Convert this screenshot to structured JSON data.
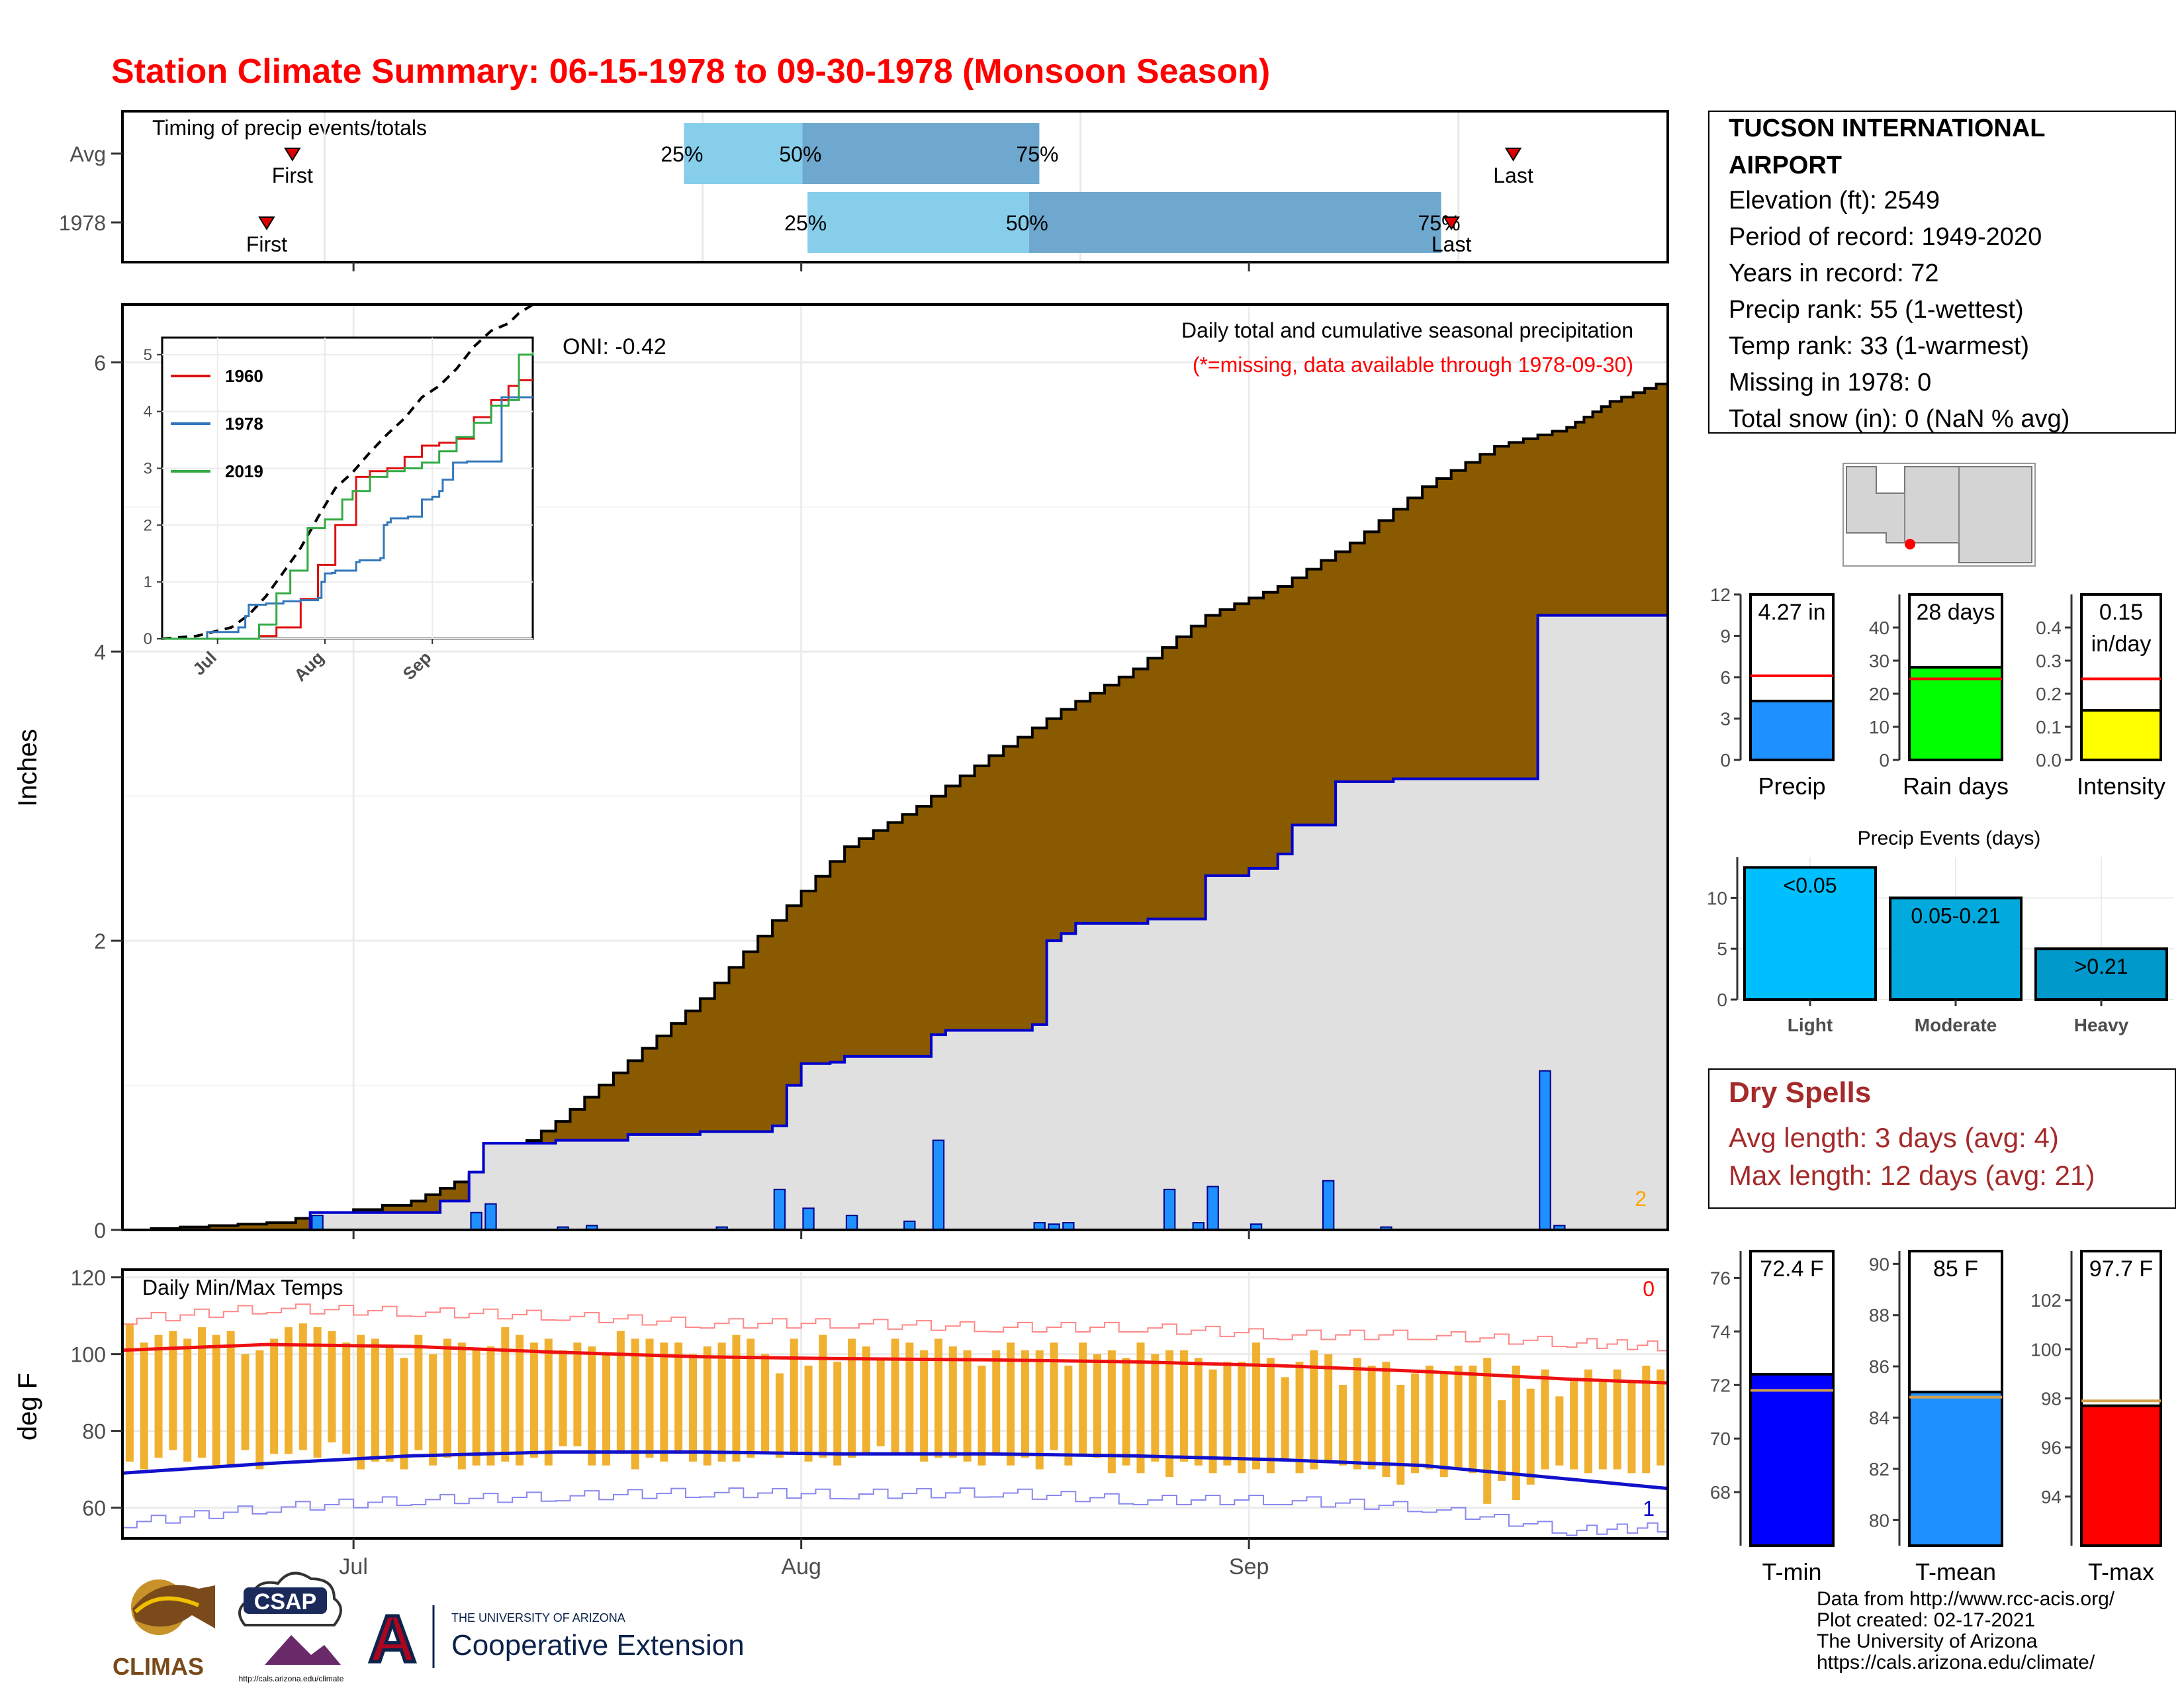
{
  "title": "Station Climate Summary: 06-15-1978 to 09-30-1978 (Monsoon Season)",
  "station": {
    "name_line1": "TUCSON INTERNATIONAL",
    "name_line2": "AIRPORT",
    "elevation": "Elevation (ft): 2549",
    "period": "Period of record: 1949-2020",
    "years": "Years in record: 72",
    "precip_rank": "Precip rank: 55 (1-wettest)",
    "temp_rank": "Temp rank: 33 (1-warmest)",
    "missing": "Missing in 1978: 0",
    "snow": "Total snow (in): 0 (NaN % avg)"
  },
  "colors": {
    "title": "#ff0000",
    "cumulative_avg_fill": "#8a5a00",
    "cumulative_1978_fill": "#e0e0e0",
    "line_1978": "#0000cc",
    "daily_bar": "#1e90ff",
    "temp_bar": "#f0b030",
    "max_line": "#ee1111",
    "min_line": "#1111cc",
    "dry_spells_text": "#a52a2a",
    "timing_light": "#87ceeb",
    "timing_dark": "#6fa8cf",
    "tmin_bar": "#0000ff",
    "tmean_bar": "#1e90ff",
    "tmax_bar": "#ff0000"
  },
  "timing": {
    "title": "Timing of precip events/totals",
    "rows": [
      {
        "label": "Avg",
        "first_day": 33,
        "p25_day": 109,
        "p50_day": 132,
        "p75_day": 178,
        "last_day": 270
      },
      {
        "label": "1978",
        "first_day": 28,
        "p25_day": 133,
        "p50_day": 176,
        "p75_day": 256,
        "last_day": 258
      }
    ],
    "first_label": "First",
    "last_label": "Last",
    "p25_label": "25%",
    "p50_label": "50%",
    "p75_label": "75%"
  },
  "chart_data": [
    {
      "type": "area",
      "id": "precip_main",
      "title": "Daily total and cumulative seasonal precipitation",
      "subtitle": "(*=missing, data available through 1978-09-30)",
      "oni": "ONI: -0.42",
      "ylabel": "Inches",
      "ylim": [
        0,
        6.4
      ],
      "yticks": [
        0,
        2,
        4,
        6
      ],
      "xticks": [
        {
          "day": 16,
          "label": "Jul"
        },
        {
          "day": 47,
          "label": "Aug"
        },
        {
          "day": 78,
          "label": "Sep"
        }
      ],
      "xrange": [
        0,
        107
      ],
      "avg_cumulative": {
        "x": [
          0,
          10,
          20,
          25,
          30,
          35,
          40,
          45,
          50,
          55,
          60,
          65,
          70,
          75,
          80,
          85,
          90,
          95,
          100,
          103,
          107
        ],
        "y": [
          0,
          0.05,
          0.2,
          0.42,
          0.75,
          1.17,
          1.6,
          2.14,
          2.65,
          2.93,
          3.28,
          3.6,
          3.88,
          4.25,
          4.45,
          4.75,
          5.14,
          5.42,
          5.55,
          5.73,
          5.88
        ]
      },
      "cumulative_1978": {
        "x": [
          0,
          12,
          13,
          22,
          24,
          25,
          30,
          35,
          40,
          45,
          46,
          47,
          49,
          50,
          56,
          57,
          63,
          64,
          65,
          66,
          71,
          75,
          78,
          80,
          81,
          84,
          88,
          97,
          98,
          107
        ],
        "y": [
          0,
          0,
          0.12,
          0.2,
          0.4,
          0.6,
          0.62,
          0.66,
          0.68,
          0.72,
          1.0,
          1.15,
          1.16,
          1.2,
          1.35,
          1.38,
          1.42,
          2.0,
          2.05,
          2.12,
          2.15,
          2.45,
          2.5,
          2.6,
          2.8,
          3.1,
          3.12,
          3.12,
          4.25,
          4.25
        ]
      },
      "daily_1978_days": [
        13,
        24,
        25,
        30,
        32,
        41,
        45,
        47,
        50,
        54,
        56,
        63,
        64,
        65,
        72,
        74,
        75,
        78,
        83,
        87,
        98,
        99
      ],
      "daily_1978_values": [
        0.1,
        0.12,
        0.18,
        0.02,
        0.03,
        0.02,
        0.28,
        0.15,
        0.1,
        0.06,
        0.62,
        0.05,
        0.04,
        0.05,
        0.28,
        0.05,
        0.3,
        0.04,
        0.34,
        0.02,
        1.1,
        0.03
      ],
      "corner_note": "2",
      "inset": {
        "type": "line",
        "yticks": [
          0,
          1,
          2,
          3,
          4,
          5
        ],
        "ylim": [
          0,
          5.3
        ],
        "xticks": [
          {
            "day": 16,
            "label": "Jul"
          },
          {
            "day": 47,
            "label": "Aug"
          },
          {
            "day": 78,
            "label": "Sep"
          }
        ],
        "xrange": [
          0,
          107
        ],
        "series": [
          {
            "name": "1960",
            "color": "#dd1111",
            "x": [
              0,
              28,
              33,
              40,
              45,
              50,
              56,
              60,
              65,
              70,
              75,
              80,
              85,
              90,
              95,
              100,
              103,
              107
            ],
            "y": [
              0,
              0.05,
              0.2,
              0.7,
              1.3,
              2.0,
              2.85,
              2.95,
              3.0,
              3.2,
              3.4,
              3.45,
              3.52,
              3.9,
              4.2,
              4.45,
              4.55,
              4.55
            ]
          },
          {
            "name": "1978",
            "color": "#3377bb",
            "x": [
              0,
              12,
              13,
              22,
              24,
              25,
              30,
              35,
              40,
              45,
              46,
              47,
              49,
              50,
              56,
              57,
              63,
              64,
              65,
              66,
              71,
              75,
              78,
              80,
              81,
              84,
              88,
              97,
              98,
              107
            ],
            "y": [
              0,
              0,
              0.12,
              0.2,
              0.4,
              0.6,
              0.62,
              0.66,
              0.68,
              0.72,
              1.0,
              1.15,
              1.16,
              1.2,
              1.35,
              1.38,
              1.42,
              2.0,
              2.05,
              2.12,
              2.15,
              2.45,
              2.5,
              2.6,
              2.8,
              3.1,
              3.12,
              3.12,
              4.25,
              4.25
            ]
          },
          {
            "name": "2019",
            "color": "#33aa44",
            "x": [
              0,
              22,
              28,
              33,
              37,
              42,
              47,
              52,
              55,
              60,
              65,
              70,
              75,
              80,
              85,
              90,
              95,
              100,
              103,
              107
            ],
            "y": [
              0,
              0,
              0.25,
              0.8,
              1.2,
              1.95,
              2.1,
              2.45,
              2.6,
              2.85,
              2.95,
              3.0,
              3.1,
              3.3,
              3.55,
              3.8,
              4.1,
              4.2,
              5.0,
              5.05
            ]
          }
        ],
        "avg_dashed": {
          "x": [
            0,
            10,
            20,
            25,
            30,
            35,
            40,
            45,
            50,
            55,
            60,
            65,
            70,
            75,
            80,
            85,
            90,
            95,
            100,
            103,
            107
          ],
          "y": [
            0,
            0.05,
            0.2,
            0.42,
            0.75,
            1.17,
            1.6,
            2.14,
            2.65,
            2.93,
            3.28,
            3.6,
            3.88,
            4.25,
            4.45,
            4.75,
            5.14,
            5.42,
            5.55,
            5.73,
            5.88
          ]
        }
      }
    },
    {
      "type": "bar",
      "id": "temps_daily",
      "title": "Daily Min/Max Temps",
      "ylabel": "deg F",
      "ylim": [
        52,
        122
      ],
      "yticks": [
        60,
        80,
        100,
        120
      ],
      "xticks": [
        {
          "day": 16,
          "label": "Jul"
        },
        {
          "day": 47,
          "label": "Aug"
        },
        {
          "day": 78,
          "label": "Sep"
        }
      ],
      "xrange": [
        0,
        107
      ],
      "avg_max": {
        "x": [
          0,
          10,
          20,
          30,
          40,
          50,
          60,
          70,
          80,
          90,
          100,
          107
        ],
        "y": [
          101,
          102.5,
          102,
          100.5,
          99.3,
          98.8,
          98.5,
          98,
          97,
          95.5,
          93.5,
          92.5
        ]
      },
      "avg_min": {
        "x": [
          0,
          10,
          20,
          30,
          40,
          50,
          60,
          70,
          80,
          90,
          100,
          107
        ],
        "y": [
          69,
          71.5,
          73.5,
          74.5,
          74.5,
          74,
          74,
          73.5,
          72.5,
          71,
          67.5,
          65
        ]
      },
      "record_max": {
        "x": [
          0,
          10,
          20,
          30,
          40,
          50,
          60,
          70,
          80,
          90,
          100,
          107
        ],
        "y": [
          109,
          112,
          111,
          110,
          108,
          108,
          107,
          107,
          105,
          105,
          103,
          102
        ]
      },
      "record_min": {
        "x": [
          0,
          10,
          20,
          30,
          40,
          50,
          60,
          70,
          80,
          90,
          100,
          107
        ],
        "y": [
          56,
          60,
          62,
          63,
          64,
          63.5,
          64,
          62,
          62,
          60,
          54,
          55
        ]
      },
      "daily_1978": {
        "tmax": [
          108,
          103,
          105,
          106,
          104,
          107,
          105,
          106,
          100,
          101,
          104,
          107,
          108,
          107,
          106,
          103,
          105,
          104,
          102,
          99,
          105,
          100,
          104,
          103,
          101,
          102,
          107,
          105,
          103,
          104,
          101,
          103,
          102,
          100,
          106,
          104,
          104,
          103,
          103,
          100,
          102,
          103,
          105,
          104,
          100,
          95,
          104,
          97,
          105,
          98,
          104,
          102,
          99,
          104,
          103,
          101,
          104,
          102,
          101,
          97,
          101,
          103,
          101,
          101,
          103,
          97,
          103,
          100,
          101,
          99,
          103,
          100,
          101,
          101,
          99,
          96,
          98,
          98,
          103,
          99,
          94,
          98,
          101,
          100,
          92,
          99,
          97,
          98,
          92,
          95,
          97,
          95,
          97,
          97,
          99,
          88,
          97,
          91,
          96,
          89,
          93,
          96,
          93,
          96,
          93,
          97,
          96
        ],
        "tmin": [
          72,
          70,
          73,
          75,
          72,
          73,
          71,
          71,
          75,
          70,
          74,
          74,
          75,
          73,
          77,
          74,
          70,
          72,
          72,
          70,
          75,
          71,
          73,
          70,
          71,
          71,
          72,
          71,
          73,
          71,
          76,
          76,
          71,
          71,
          74,
          70,
          73,
          72,
          74,
          72,
          71,
          72,
          72,
          73,
          74,
          73,
          74,
          72,
          73,
          71,
          73,
          74,
          76,
          74,
          74,
          72,
          73,
          73,
          72,
          71,
          74,
          71,
          73,
          70,
          75,
          71,
          74,
          73,
          69,
          71,
          69,
          72,
          68,
          72,
          71,
          69,
          71,
          69,
          70,
          69,
          72,
          69,
          70,
          72,
          71,
          70,
          70,
          68,
          66,
          69,
          70,
          68,
          70,
          69,
          61,
          67,
          62,
          66,
          70,
          71,
          70,
          69,
          70,
          70,
          69,
          69,
          71
        ]
      },
      "corner_max": "0",
      "corner_min": "1"
    },
    {
      "type": "bar",
      "id": "precip_total",
      "categories": [
        "Precip"
      ],
      "values": [
        4.27
      ],
      "avg": 6.1,
      "label": "4.27 in",
      "ylim": [
        0,
        12
      ],
      "yticks": [
        0,
        3,
        6,
        9,
        12
      ]
    },
    {
      "type": "bar",
      "id": "rain_days",
      "categories": [
        "Rain days"
      ],
      "values": [
        28
      ],
      "avg": 24.5,
      "label": "28 days",
      "ylim": [
        0,
        50
      ],
      "yticks": [
        0,
        10,
        20,
        30,
        40
      ]
    },
    {
      "type": "bar",
      "id": "intensity",
      "categories": [
        "Intensity"
      ],
      "values": [
        0.15
      ],
      "avg": 0.245,
      "label_line1": "0.15",
      "label_line2": "in/day",
      "ylim": [
        0,
        0.5
      ],
      "yticks": [
        0.0,
        0.1,
        0.2,
        0.3,
        0.4
      ]
    },
    {
      "type": "bar",
      "id": "precip_events",
      "title": "Precip Events (days)",
      "categories": [
        "Light",
        "Moderate",
        "Heavy"
      ],
      "values": [
        13,
        10,
        5
      ],
      "bar_labels": [
        "<0.05",
        "0.05-0.21",
        ">0.21"
      ],
      "colors": [
        "#00bfff",
        "#00aadd",
        "#0099cc"
      ],
      "ylim": [
        0,
        14
      ],
      "yticks": [
        0,
        5,
        10
      ]
    },
    {
      "type": "bar",
      "id": "tmin_total",
      "categories": [
        "T-min"
      ],
      "values": [
        72.4
      ],
      "avg": 71.8,
      "label": "72.4 F",
      "ylim": [
        66,
        77
      ],
      "yticks": [
        68,
        70,
        72,
        74,
        76
      ]
    },
    {
      "type": "bar",
      "id": "tmean_total",
      "categories": [
        "T-mean"
      ],
      "values": [
        85
      ],
      "avg": 84.8,
      "label": "85 F",
      "ylim": [
        79,
        90.5
      ],
      "yticks": [
        80,
        82,
        84,
        86,
        88,
        90
      ]
    },
    {
      "type": "bar",
      "id": "tmax_total",
      "categories": [
        "T-max"
      ],
      "values": [
        97.7
      ],
      "avg": 97.9,
      "label": "97.7 F",
      "ylim": [
        92,
        104
      ],
      "yticks": [
        94,
        96,
        98,
        100,
        102
      ]
    }
  ],
  "dry_spells": {
    "title": "Dry Spells",
    "avg_length": "Avg length: 3 days (avg: 4)",
    "max_length": "Max length: 12 days (avg: 21)"
  },
  "footer": {
    "source": "Data from http://www.rcc-acis.org/",
    "created": "Plot created: 02-17-2021",
    "org": "The University of Arizona",
    "url": "https://cals.arizona.edu/climate/",
    "logo_climas": "CLIMAS",
    "logo_csap": "CSAP",
    "logo_csap_url": "http://cals.arizona.edu/climate",
    "logo_ua_line1": "THE UNIVERSITY OF ARIZONA",
    "logo_ua_line2": "Cooperative Extension",
    "logo_ua_mark": "A"
  }
}
